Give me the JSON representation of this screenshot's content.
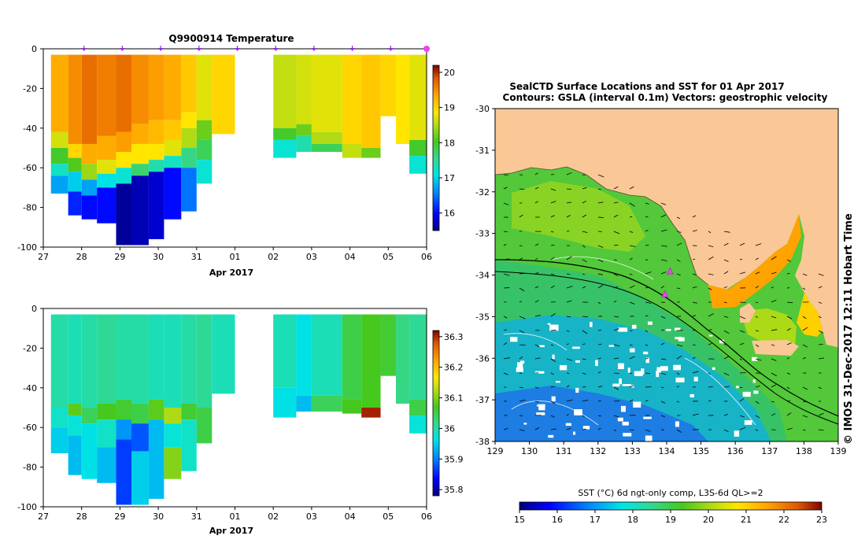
{
  "chart_data": [
    {
      "type": "heatmap",
      "title": "Q9900914  Temperature",
      "xlabel": "Apr 2017",
      "ylabel": "",
      "x_ticks": [
        "27",
        "28",
        "29",
        "30",
        "31",
        "01",
        "02",
        "03",
        "04",
        "05",
        "06"
      ],
      "x_tick_values": [
        0,
        1,
        2,
        3,
        4,
        5,
        6,
        7,
        8,
        9,
        10
      ],
      "xlim": [
        0,
        10
      ],
      "y_ticks": [
        "0",
        "-20",
        "-40",
        "-60",
        "-80",
        "-100"
      ],
      "y_tick_values": [
        0,
        -20,
        -40,
        -60,
        -80,
        -100
      ],
      "ylim": [
        -100,
        0
      ],
      "colorbar": {
        "min": 15.5,
        "max": 20.2,
        "ticks": [
          "16",
          "17",
          "18",
          "19",
          "20"
        ],
        "tick_values": [
          16,
          17,
          18,
          19,
          20
        ]
      },
      "profile_markers": [
        1,
        2,
        3,
        4,
        5,
        6,
        7,
        8,
        9,
        10
      ],
      "profiles": [
        {
          "x0": 0.2,
          "x1": 0.65,
          "depth": -73,
          "layers": [
            [
              0,
              19.2
            ],
            [
              -42,
              18.5
            ],
            [
              -50,
              17.8
            ],
            [
              -58,
              17.1
            ],
            [
              -64,
              16.6
            ]
          ]
        },
        {
          "x0": 0.65,
          "x1": 1.0,
          "depth": -84,
          "layers": [
            [
              0,
              19.4
            ],
            [
              -48,
              18.9
            ],
            [
              -55,
              17.9
            ],
            [
              -62,
              16.8
            ],
            [
              -72,
              16.1
            ]
          ]
        },
        {
          "x0": 1.0,
          "x1": 1.4,
          "depth": -86,
          "layers": [
            [
              0,
              19.6
            ],
            [
              -48,
              19.2
            ],
            [
              -58,
              18.2
            ],
            [
              -66,
              16.6
            ],
            [
              -74,
              16.0
            ]
          ]
        },
        {
          "x0": 1.4,
          "x1": 1.9,
          "depth": -88,
          "layers": [
            [
              0,
              19.5
            ],
            [
              -44,
              19.2
            ],
            [
              -56,
              18.6
            ],
            [
              -63,
              16.9
            ],
            [
              -70,
              16.0
            ]
          ]
        },
        {
          "x0": 1.9,
          "x1": 2.3,
          "depth": -99,
          "layers": [
            [
              0,
              19.6
            ],
            [
              -42,
              19.3
            ],
            [
              -52,
              18.8
            ],
            [
              -60,
              17.0
            ],
            [
              -68,
              15.6
            ]
          ]
        },
        {
          "x0": 2.3,
          "x1": 2.75,
          "depth": -99,
          "layers": [
            [
              0,
              19.4
            ],
            [
              -38,
              19.2
            ],
            [
              -48,
              18.8
            ],
            [
              -58,
              17.5
            ],
            [
              -64,
              15.7
            ]
          ]
        },
        {
          "x0": 2.75,
          "x1": 3.15,
          "depth": -96,
          "layers": [
            [
              0,
              19.3
            ],
            [
              -36,
              19.1
            ],
            [
              -48,
              18.8
            ],
            [
              -56,
              17.2
            ],
            [
              -62,
              15.8
            ]
          ]
        },
        {
          "x0": 3.15,
          "x1": 3.6,
          "depth": -86,
          "layers": [
            [
              0,
              19.2
            ],
            [
              -36,
              19.0
            ],
            [
              -46,
              18.6
            ],
            [
              -54,
              17.1
            ],
            [
              -60,
              16.0
            ]
          ]
        },
        {
          "x0": 3.6,
          "x1": 4.0,
          "depth": -82,
          "layers": [
            [
              0,
              19.0
            ],
            [
              -32,
              18.8
            ],
            [
              -40,
              18.3
            ],
            [
              -50,
              17.4
            ],
            [
              -60,
              16.4
            ]
          ]
        },
        {
          "x0": 4.0,
          "x1": 4.4,
          "depth": -68,
          "layers": [
            [
              0,
              18.6
            ],
            [
              -36,
              18.0
            ],
            [
              -46,
              17.6
            ],
            [
              -56,
              17.0
            ]
          ]
        },
        {
          "x0": 4.4,
          "x1": 5.0,
          "depth": -43,
          "layers": [
            [
              0,
              18.9
            ]
          ]
        },
        {
          "x0": 6.0,
          "x1": 6.6,
          "depth": -55,
          "layers": [
            [
              0,
              18.4
            ],
            [
              -40,
              17.8
            ],
            [
              -46,
              17.0
            ]
          ]
        },
        {
          "x0": 6.6,
          "x1": 7.0,
          "depth": -52,
          "layers": [
            [
              0,
              18.5
            ],
            [
              -38,
              18.0
            ],
            [
              -44,
              17.2
            ]
          ]
        },
        {
          "x0": 7.0,
          "x1": 7.8,
          "depth": -52,
          "layers": [
            [
              0,
              18.6
            ],
            [
              -42,
              18.3
            ],
            [
              -48,
              17.6
            ]
          ]
        },
        {
          "x0": 7.8,
          "x1": 8.3,
          "depth": -55,
          "layers": [
            [
              0,
              18.9
            ],
            [
              -48,
              18.4
            ]
          ]
        },
        {
          "x0": 8.3,
          "x1": 8.8,
          "depth": -55,
          "layers": [
            [
              0,
              19.0
            ],
            [
              -50,
              18.0
            ]
          ]
        },
        {
          "x0": 8.8,
          "x1": 9.2,
          "depth": -34,
          "layers": [
            [
              0,
              18.9
            ]
          ]
        },
        {
          "x0": 9.2,
          "x1": 9.55,
          "depth": -48,
          "layers": [
            [
              0,
              18.8
            ]
          ]
        },
        {
          "x0": 9.55,
          "x1": 10.0,
          "depth": -63,
          "layers": [
            [
              0,
              18.6
            ],
            [
              -46,
              17.8
            ],
            [
              -54,
              17.0
            ]
          ]
        }
      ]
    },
    {
      "type": "heatmap",
      "title": "",
      "xlabel": "Apr 2017",
      "ylabel": "",
      "x_ticks": [
        "27",
        "28",
        "29",
        "30",
        "31",
        "01",
        "02",
        "03",
        "04",
        "05",
        "06"
      ],
      "x_tick_values": [
        0,
        1,
        2,
        3,
        4,
        5,
        6,
        7,
        8,
        9,
        10
      ],
      "xlim": [
        0,
        10
      ],
      "y_ticks": [
        "0",
        "-20",
        "-40",
        "-60",
        "-80",
        "-100"
      ],
      "y_tick_values": [
        0,
        -20,
        -40,
        -60,
        -80,
        -100
      ],
      "ylim": [
        -100,
        0
      ],
      "colorbar": {
        "min": 35.78,
        "max": 36.32,
        "ticks": [
          "35.8",
          "35.9",
          "36",
          "36.1",
          "36.2",
          "36.3"
        ],
        "tick_values": [
          35.8,
          35.9,
          36.0,
          36.1,
          36.2,
          36.3
        ]
      },
      "profiles": [
        {
          "x0": 0.2,
          "x1": 0.65,
          "depth": -73,
          "layers": [
            [
              0,
              35.98
            ],
            [
              -50,
              35.96
            ],
            [
              -60,
              35.93
            ]
          ]
        },
        {
          "x0": 0.65,
          "x1": 1.0,
          "depth": -84,
          "layers": [
            [
              0,
              35.97
            ],
            [
              -48,
              36.06
            ],
            [
              -54,
              35.95
            ],
            [
              -64,
              35.92
            ]
          ]
        },
        {
          "x0": 1.0,
          "x1": 1.4,
          "depth": -86,
          "layers": [
            [
              0,
              35.98
            ],
            [
              -50,
              36.02
            ],
            [
              -58,
              35.94
            ]
          ]
        },
        {
          "x0": 1.4,
          "x1": 1.9,
          "depth": -88,
          "layers": [
            [
              0,
              35.99
            ],
            [
              -48,
              36.05
            ],
            [
              -56,
              35.96
            ],
            [
              -70,
              35.92
            ]
          ]
        },
        {
          "x0": 1.9,
          "x1": 2.3,
          "depth": -99,
          "layers": [
            [
              0,
              35.98
            ],
            [
              -46,
              36.04
            ],
            [
              -56,
              35.9
            ],
            [
              -66,
              35.86
            ]
          ]
        },
        {
          "x0": 2.3,
          "x1": 2.75,
          "depth": -99,
          "layers": [
            [
              0,
              35.98
            ],
            [
              -48,
              36.03
            ],
            [
              -58,
              35.87
            ],
            [
              -72,
              35.93
            ]
          ]
        },
        {
          "x0": 2.75,
          "x1": 3.15,
          "depth": -96,
          "layers": [
            [
              0,
              35.97
            ],
            [
              -46,
              36.06
            ],
            [
              -56,
              35.92
            ]
          ]
        },
        {
          "x0": 3.15,
          "x1": 3.6,
          "depth": -86,
          "layers": [
            [
              0,
              35.97
            ],
            [
              -50,
              36.1
            ],
            [
              -58,
              35.95
            ],
            [
              -70,
              36.08
            ]
          ]
        },
        {
          "x0": 3.6,
          "x1": 4.0,
          "depth": -82,
          "layers": [
            [
              0,
              35.98
            ],
            [
              -48,
              36.04
            ],
            [
              -56,
              35.96
            ]
          ]
        },
        {
          "x0": 4.0,
          "x1": 4.4,
          "depth": -68,
          "layers": [
            [
              0,
              35.99
            ],
            [
              -50,
              36.03
            ]
          ]
        },
        {
          "x0": 4.4,
          "x1": 5.0,
          "depth": -43,
          "layers": [
            [
              0,
              35.97
            ]
          ]
        },
        {
          "x0": 6.0,
          "x1": 6.6,
          "depth": -55,
          "layers": [
            [
              0,
              35.97
            ],
            [
              -40,
              35.94
            ]
          ]
        },
        {
          "x0": 6.6,
          "x1": 7.0,
          "depth": -52,
          "layers": [
            [
              0,
              35.94
            ],
            [
              -44,
              35.92
            ]
          ]
        },
        {
          "x0": 7.0,
          "x1": 7.8,
          "depth": -52,
          "layers": [
            [
              0,
              35.97
            ],
            [
              -44,
              36.02
            ]
          ]
        },
        {
          "x0": 7.8,
          "x1": 8.3,
          "depth": -53,
          "layers": [
            [
              0,
              36.03
            ],
            [
              -46,
              36.05
            ]
          ]
        },
        {
          "x0": 8.3,
          "x1": 8.8,
          "depth": -55,
          "layers": [
            [
              0,
              36.05
            ],
            [
              -50,
              36.3
            ]
          ]
        },
        {
          "x0": 8.8,
          "x1": 9.2,
          "depth": -34,
          "layers": [
            [
              0,
              36.04
            ]
          ]
        },
        {
          "x0": 9.2,
          "x1": 9.55,
          "depth": -48,
          "layers": [
            [
              0,
              36.0
            ]
          ]
        },
        {
          "x0": 9.55,
          "x1": 10.0,
          "depth": -63,
          "layers": [
            [
              0,
              35.99
            ],
            [
              -46,
              36.03
            ],
            [
              -54,
              35.95
            ]
          ]
        }
      ]
    },
    {
      "type": "heatmap",
      "title": "SealCTD Surface Locations and SST for 01 Apr 2017",
      "subtitle": "Contours: GSLA (interval 0.1m) Vectors: geostrophic velocity",
      "xlabel": "",
      "ylabel": "",
      "x_ticks": [
        "129",
        "130",
        "131",
        "132",
        "133",
        "134",
        "135",
        "136",
        "137",
        "138",
        "139"
      ],
      "x_tick_values": [
        129,
        130,
        131,
        132,
        133,
        134,
        135,
        136,
        137,
        138,
        139
      ],
      "xlim": [
        129,
        139
      ],
      "y_ticks": [
        "-30",
        "-31",
        "-32",
        "-33",
        "-34",
        "-35",
        "-36",
        "-37",
        "-38"
      ],
      "y_tick_values": [
        -30,
        -31,
        -32,
        -33,
        -34,
        -35,
        -36,
        -37,
        -38
      ],
      "ylim": [
        -38,
        -30
      ],
      "colorbar": {
        "label": "SST (°C) 6d ngt-only comp, L3S-6d QL>=2",
        "min": 15,
        "max": 23,
        "ticks": [
          "15",
          "16",
          "17",
          "18",
          "19",
          "20",
          "21",
          "22",
          "23"
        ],
        "tick_values": [
          15,
          16,
          17,
          18,
          19,
          20,
          21,
          22,
          23
        ]
      },
      "stations": [
        [
          134.1,
          -33.9
        ],
        [
          133.95,
          -34.45
        ]
      ],
      "side_label": "© IMOS 31-Dec-2017 12:11 Hobart Time"
    }
  ],
  "colors": {
    "land": "#f9c896",
    "station": "#ee44ee",
    "marker": "#a020f0",
    "cmap_jet": [
      "#00007f",
      "#0000ff",
      "#007fff",
      "#00e5e5",
      "#34d88c",
      "#46c81e",
      "#b6dc14",
      "#ffe600",
      "#ffa300",
      "#e05a00",
      "#800000"
    ]
  }
}
